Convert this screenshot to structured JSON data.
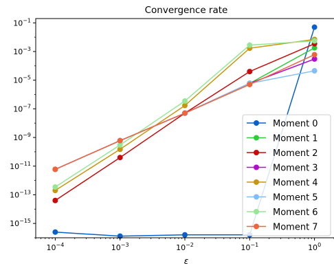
{
  "chart_data": {
    "type": "line",
    "title": "Convergence rate",
    "xlabel": "ε",
    "ylabel": "",
    "x_scale": "log",
    "y_scale": "log",
    "x": [
      0.0001,
      0.001,
      0.01,
      0.1,
      1
    ],
    "xlim": [
      5e-05,
      2
    ],
    "ylim": [
      1e-16,
      0.2
    ],
    "x_ticks": [
      {
        "value": 0.0001,
        "base": "10",
        "exp": "−4"
      },
      {
        "value": 0.001,
        "base": "10",
        "exp": "−3"
      },
      {
        "value": 0.01,
        "base": "10",
        "exp": "−2"
      },
      {
        "value": 0.1,
        "base": "10",
        "exp": "−1"
      },
      {
        "value": 1,
        "base": "10",
        "exp": "0"
      }
    ],
    "y_ticks": [
      {
        "value": 1e-15,
        "base": "10",
        "exp": "−15"
      },
      {
        "value": 1e-13,
        "base": "10",
        "exp": "−13"
      },
      {
        "value": 1e-11,
        "base": "10",
        "exp": "−11"
      },
      {
        "value": 1e-09,
        "base": "10",
        "exp": "−9"
      },
      {
        "value": 1e-07,
        "base": "10",
        "exp": "−7"
      },
      {
        "value": 1e-05,
        "base": "10",
        "exp": "−5"
      },
      {
        "value": 0.001,
        "base": "10",
        "exp": "−3"
      },
      {
        "value": 0.1,
        "base": "10",
        "exp": "−1"
      }
    ],
    "grid": false,
    "legend_position": "bottom-right",
    "series": [
      {
        "name": "Moment 0",
        "color": "#0a60c8",
        "values": [
          2.5e-16,
          1.3e-16,
          1.6e-16,
          1.6e-16,
          0.05
        ]
      },
      {
        "name": "Moment 1",
        "color": "#2ecc3a",
        "values": [
          6e-12,
          6e-10,
          5e-08,
          6e-06,
          0.0018
        ]
      },
      {
        "name": "Moment 2",
        "color": "#c80a0a",
        "values": [
          4e-14,
          4e-11,
          5e-08,
          4e-05,
          0.0035
        ]
      },
      {
        "name": "Moment 3",
        "color": "#b40ad2",
        "values": [
          6e-12,
          6e-10,
          5e-08,
          6e-06,
          0.0003
        ]
      },
      {
        "name": "Moment 4",
        "color": "#c8960a",
        "values": [
          2e-13,
          1.5e-10,
          1.7e-07,
          0.0017,
          0.007
        ]
      },
      {
        "name": "Moment 5",
        "color": "#82bef5",
        "values": [
          6e-12,
          6e-10,
          5e-08,
          6e-06,
          4.5e-05
        ]
      },
      {
        "name": "Moment 6",
        "color": "#96e696",
        "values": [
          3.5e-13,
          3e-10,
          3.5e-07,
          0.0028,
          0.0055
        ]
      },
      {
        "name": "Moment 7",
        "color": "#f0643c",
        "values": [
          6e-12,
          6e-10,
          5e-08,
          5e-06,
          0.0006
        ]
      }
    ]
  }
}
